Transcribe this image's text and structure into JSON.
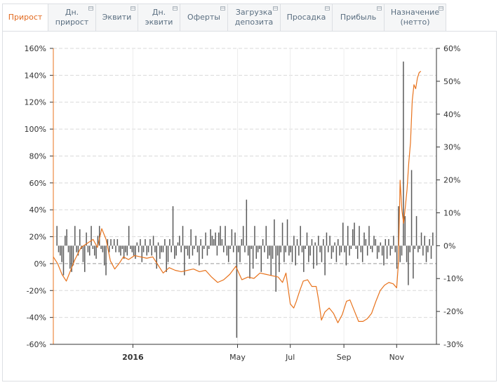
{
  "tabs": [
    {
      "label": "Прирост",
      "active": true
    },
    {
      "label": "Дн. прирост",
      "active": false
    },
    {
      "label": "Эквити",
      "active": false
    },
    {
      "label": "Дн. эквити",
      "active": false
    },
    {
      "label": "Оферты",
      "active": false
    },
    {
      "label": "Загрузка депозита",
      "active": false
    },
    {
      "label": "Просадка",
      "active": false
    },
    {
      "label": "Прибыль",
      "active": false
    },
    {
      "label": "Назначение (нетто)",
      "active": false
    }
  ],
  "colors": {
    "line": "#e8731d",
    "bars": "#5a5a5a",
    "active_tab": "#e2691e"
  },
  "chart_data": {
    "type": "line+bar",
    "x_ticks": [
      {
        "label": "2016",
        "date": "2016-01-01",
        "bold": true
      },
      {
        "label": "May",
        "date": "2016-05-01",
        "bold": false
      },
      {
        "label": "Jul",
        "date": "2016-07-01",
        "bold": false
      },
      {
        "label": "Sep",
        "date": "2016-09-01",
        "bold": false
      },
      {
        "label": "Nov",
        "date": "2016-11-01",
        "bold": false
      }
    ],
    "x_range": [
      "2015-10-01",
      "2016-12-17"
    ],
    "y_left": {
      "min": -60,
      "max": 160,
      "step": 20,
      "unit": "%"
    },
    "y_right": {
      "min": -30,
      "max": 60,
      "step": 10,
      "unit": "%"
    },
    "grid": true,
    "line_series": {
      "axis": "left",
      "points": [
        [
          "2015-10-01",
          5
        ],
        [
          "2015-10-06",
          0
        ],
        [
          "2015-10-11",
          -8
        ],
        [
          "2015-10-16",
          -13
        ],
        [
          "2015-10-21",
          -5
        ],
        [
          "2015-10-26",
          3
        ],
        [
          "2015-11-02",
          12
        ],
        [
          "2015-11-09",
          15
        ],
        [
          "2015-11-16",
          18
        ],
        [
          "2015-11-21",
          12
        ],
        [
          "2015-11-26",
          26
        ],
        [
          "2015-12-01",
          18
        ],
        [
          "2015-12-06",
          2
        ],
        [
          "2015-12-11",
          -4
        ],
        [
          "2015-12-16",
          0
        ],
        [
          "2015-12-21",
          5
        ],
        [
          "2015-12-27",
          3
        ],
        [
          "2016-01-03",
          6
        ],
        [
          "2016-01-10",
          5
        ],
        [
          "2016-01-17",
          4
        ],
        [
          "2016-01-24",
          5
        ],
        [
          "2016-01-31",
          -2
        ],
        [
          "2016-02-05",
          -7
        ],
        [
          "2016-02-12",
          -3
        ],
        [
          "2016-02-19",
          -5
        ],
        [
          "2016-02-26",
          -6
        ],
        [
          "2016-03-04",
          -5
        ],
        [
          "2016-03-11",
          -4
        ],
        [
          "2016-03-18",
          -6
        ],
        [
          "2016-03-25",
          -5
        ],
        [
          "2016-04-01",
          -10
        ],
        [
          "2016-04-08",
          -14
        ],
        [
          "2016-04-15",
          -12
        ],
        [
          "2016-04-22",
          -8
        ],
        [
          "2016-04-29",
          -2
        ],
        [
          "2016-05-06",
          -12
        ],
        [
          "2016-05-13",
          -10
        ],
        [
          "2016-05-20",
          -11
        ],
        [
          "2016-05-27",
          -7
        ],
        [
          "2016-06-03",
          -8
        ],
        [
          "2016-06-10",
          -9
        ],
        [
          "2016-06-17",
          -10
        ],
        [
          "2016-06-22",
          -14
        ],
        [
          "2016-06-26",
          -7
        ],
        [
          "2016-07-01",
          -30
        ],
        [
          "2016-07-05",
          -33
        ],
        [
          "2016-07-08",
          -28
        ],
        [
          "2016-07-12",
          -20
        ],
        [
          "2016-07-16",
          -13
        ],
        [
          "2016-07-21",
          -12
        ],
        [
          "2016-07-26",
          -17
        ],
        [
          "2016-07-31",
          -17
        ],
        [
          "2016-08-03",
          -28
        ],
        [
          "2016-08-06",
          -42
        ],
        [
          "2016-08-10",
          -36
        ],
        [
          "2016-08-15",
          -33
        ],
        [
          "2016-08-20",
          -37
        ],
        [
          "2016-08-25",
          -44
        ],
        [
          "2016-08-30",
          -38
        ],
        [
          "2016-09-04",
          -28
        ],
        [
          "2016-09-08",
          -27
        ],
        [
          "2016-09-13",
          -35
        ],
        [
          "2016-09-18",
          -43
        ],
        [
          "2016-09-23",
          -43
        ],
        [
          "2016-09-28",
          -41
        ],
        [
          "2016-10-03",
          -37
        ],
        [
          "2016-10-08",
          -28
        ],
        [
          "2016-10-13",
          -20
        ],
        [
          "2016-10-18",
          -16
        ],
        [
          "2016-10-23",
          -14
        ],
        [
          "2016-10-28",
          -15
        ],
        [
          "2016-11-01",
          -18
        ],
        [
          "2016-11-03",
          0
        ],
        [
          "2016-11-05",
          62
        ],
        [
          "2016-11-07",
          40
        ],
        [
          "2016-11-09",
          30
        ],
        [
          "2016-11-11",
          42
        ],
        [
          "2016-11-13",
          55
        ],
        [
          "2016-11-15",
          75
        ],
        [
          "2016-11-17",
          90
        ],
        [
          "2016-11-19",
          121
        ],
        [
          "2016-11-21",
          133
        ],
        [
          "2016-11-23",
          130
        ],
        [
          "2016-11-25",
          138
        ],
        [
          "2016-11-27",
          142
        ],
        [
          "2016-11-29",
          143
        ]
      ]
    },
    "bar_series": {
      "axis": "right",
      "values": [
        6,
        -2,
        -3,
        -5,
        -9,
        3,
        5,
        -2,
        -7,
        -8,
        -6,
        6,
        -2,
        -3,
        5,
        -1,
        -5,
        -8,
        4,
        -2,
        -3,
        6,
        -1,
        -3,
        -4,
        3,
        6,
        -1,
        -2,
        -6,
        -9,
        2,
        -2,
        2,
        -1,
        2,
        -2,
        2,
        -2,
        -3,
        -1,
        -4,
        -2,
        -3,
        6,
        -1,
        -2,
        -3,
        -4,
        1,
        -2,
        2,
        -5,
        -2,
        2,
        -3,
        -2,
        2,
        -3,
        3,
        -2,
        -7,
        1,
        -4,
        -2,
        -2,
        2,
        -8,
        -5,
        2,
        -2,
        12,
        -4,
        -3,
        1,
        3,
        -2,
        6,
        -9,
        -1,
        -3,
        -4,
        5,
        -3,
        -1,
        3,
        -2,
        -6,
        2,
        -4,
        -1,
        4,
        -3,
        -1,
        5,
        3,
        2,
        4,
        -3,
        4,
        6,
        2,
        -2,
        6,
        -3,
        -5,
        -1,
        5,
        -2,
        4,
        -28,
        -2,
        -5,
        2,
        6,
        -2,
        14,
        -3,
        -10,
        -1,
        -7,
        6,
        -4,
        -2,
        -1,
        -8,
        2,
        -2,
        6,
        -4,
        -3,
        -9,
        -4,
        8,
        -14,
        -3,
        -8,
        -2,
        7,
        -5,
        -2,
        8,
        -3,
        -2,
        -5,
        3,
        -6,
        2,
        -3,
        6,
        -2,
        -8,
        -1,
        4,
        -5,
        -3,
        2,
        -7,
        1,
        -6,
        3,
        -2,
        -5,
        2,
        -9,
        4,
        -2,
        3,
        -4,
        -2,
        1,
        -5,
        2,
        -3,
        -2,
        7,
        -2,
        -6,
        6,
        -3,
        -1,
        5,
        7,
        -1,
        -4,
        6,
        -2,
        -5,
        4,
        2,
        -3,
        6,
        -1,
        -2,
        3,
        2,
        -4,
        -2,
        1,
        -3,
        -6,
        2,
        -4,
        2,
        -3,
        -1,
        3,
        -2,
        -7,
        12,
        -5,
        -3,
        56,
        9,
        -5,
        -12,
        -2,
        23,
        -10,
        -1,
        9,
        -2,
        -1,
        4,
        -3,
        3,
        -5,
        -2,
        2,
        -4,
        4
      ]
    }
  }
}
